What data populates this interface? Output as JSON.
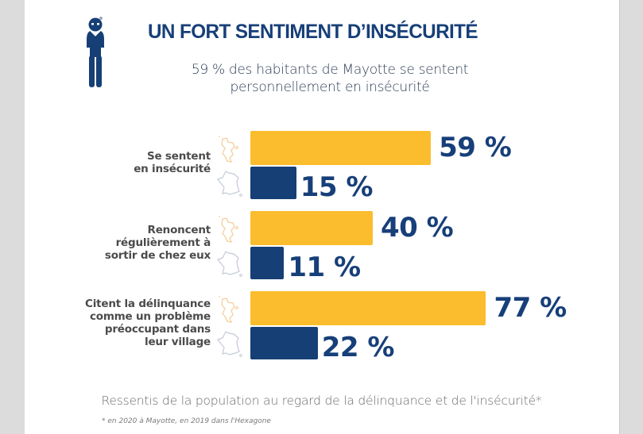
{
  "header": {
    "title": "UN FORT SENTIMENT D’INSÉCURITÉ",
    "subtitle_line1": "59 % des habitants de Mayotte se sentent",
    "subtitle_line2": "personnellement en insécurité",
    "icon": "worried-person-icon"
  },
  "colors": {
    "mayotte": "#fbbd2e",
    "hexagone": "#163f75",
    "title": "#173f79"
  },
  "chart_data": {
    "type": "bar",
    "orientation": "horizontal",
    "title": "UN FORT SENTIMENT D’INSÉCURITÉ",
    "subtitle": "59 % des habitants de Mayotte se sentent personnellement en insécurité",
    "categories": [
      [
        "Se sentent",
        "en insécurité"
      ],
      [
        "Renoncent",
        "régulièrement à",
        "sortir de chez eux"
      ],
      [
        "Citent la délinquance",
        "comme un problème",
        "préoccupant dans",
        "leur village"
      ]
    ],
    "series": [
      {
        "name": "Mayotte",
        "icon": "mayotte-map-icon",
        "values": [
          59,
          40,
          77
        ],
        "labels": [
          "59 %",
          "40 %",
          "77 %"
        ]
      },
      {
        "name": "Hexagone",
        "icon": "france-map-icon",
        "values": [
          15,
          11,
          22
        ],
        "labels": [
          "15 %",
          "11 %",
          "22 %"
        ]
      }
    ],
    "unit": "%",
    "xlim": [
      0,
      100
    ],
    "grid": false,
    "axes_visible": false,
    "legend": "map icons beside each bar",
    "caption": "Ressentis de la population au regard de la délinquance et de l'insécurité*",
    "footnote": "* en 2020 à Mayotte, en 2019 dans l'Hexagone"
  }
}
